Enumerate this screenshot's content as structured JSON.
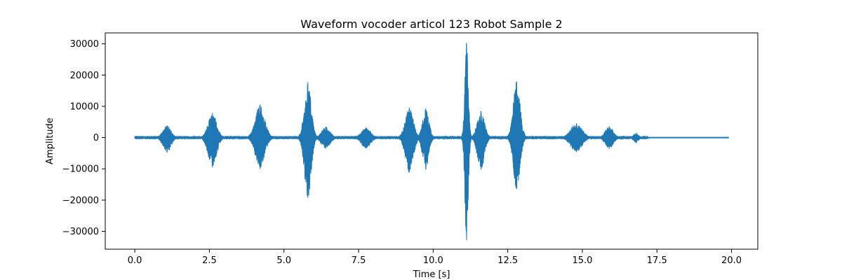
{
  "chart_data": {
    "type": "line",
    "title": "Waveform vocoder articol 123 Robot Sample 2",
    "xlabel": "Time [s]",
    "ylabel": "Amplitude",
    "xlim": [
      -0.99,
      20.88
    ],
    "ylim": [
      -35700,
      33500
    ],
    "x_ticks": [
      0.0,
      2.5,
      5.0,
      7.5,
      10.0,
      12.5,
      15.0,
      17.5,
      20.0
    ],
    "x_tick_labels": [
      "0.0",
      "2.5",
      "5.0",
      "7.5",
      "10.0",
      "12.5",
      "15.0",
      "17.5",
      "20.0"
    ],
    "y_ticks": [
      -30000,
      -20000,
      -10000,
      0,
      10000,
      20000,
      30000
    ],
    "y_tick_labels": [
      "−30000",
      "−20000",
      "−10000",
      "0",
      "10000",
      "20000",
      "30000"
    ],
    "grid": false,
    "line_color": "#1f77b4",
    "duration_s": 19.9,
    "baseline_amplitude": 400,
    "bursts": [
      {
        "t": 1.08,
        "w": 0.28,
        "max": 3900,
        "min": -4800
      },
      {
        "t": 2.6,
        "w": 0.3,
        "max": 7900,
        "min": -9500
      },
      {
        "t": 4.2,
        "w": 0.33,
        "max": 10600,
        "min": -10000
      },
      {
        "t": 5.8,
        "w": 0.24,
        "max": 17800,
        "min": -19300
      },
      {
        "t": 6.4,
        "w": 0.3,
        "max": 3500,
        "min": -3500
      },
      {
        "t": 7.75,
        "w": 0.32,
        "max": 3200,
        "min": -3500
      },
      {
        "t": 9.2,
        "w": 0.28,
        "max": 9600,
        "min": -11200
      },
      {
        "t": 9.75,
        "w": 0.22,
        "max": 9300,
        "min": -10300
      },
      {
        "t": 11.12,
        "w": 0.12,
        "max": 30300,
        "min": -32800
      },
      {
        "t": 11.6,
        "w": 0.25,
        "max": 8500,
        "min": -10200
      },
      {
        "t": 12.8,
        "w": 0.24,
        "max": 18000,
        "min": -16500
      },
      {
        "t": 14.8,
        "w": 0.4,
        "max": 4600,
        "min": -4600
      },
      {
        "t": 15.9,
        "w": 0.28,
        "max": 3600,
        "min": -3600
      },
      {
        "t": 16.8,
        "w": 0.18,
        "max": 1300,
        "min": -1500
      }
    ]
  }
}
